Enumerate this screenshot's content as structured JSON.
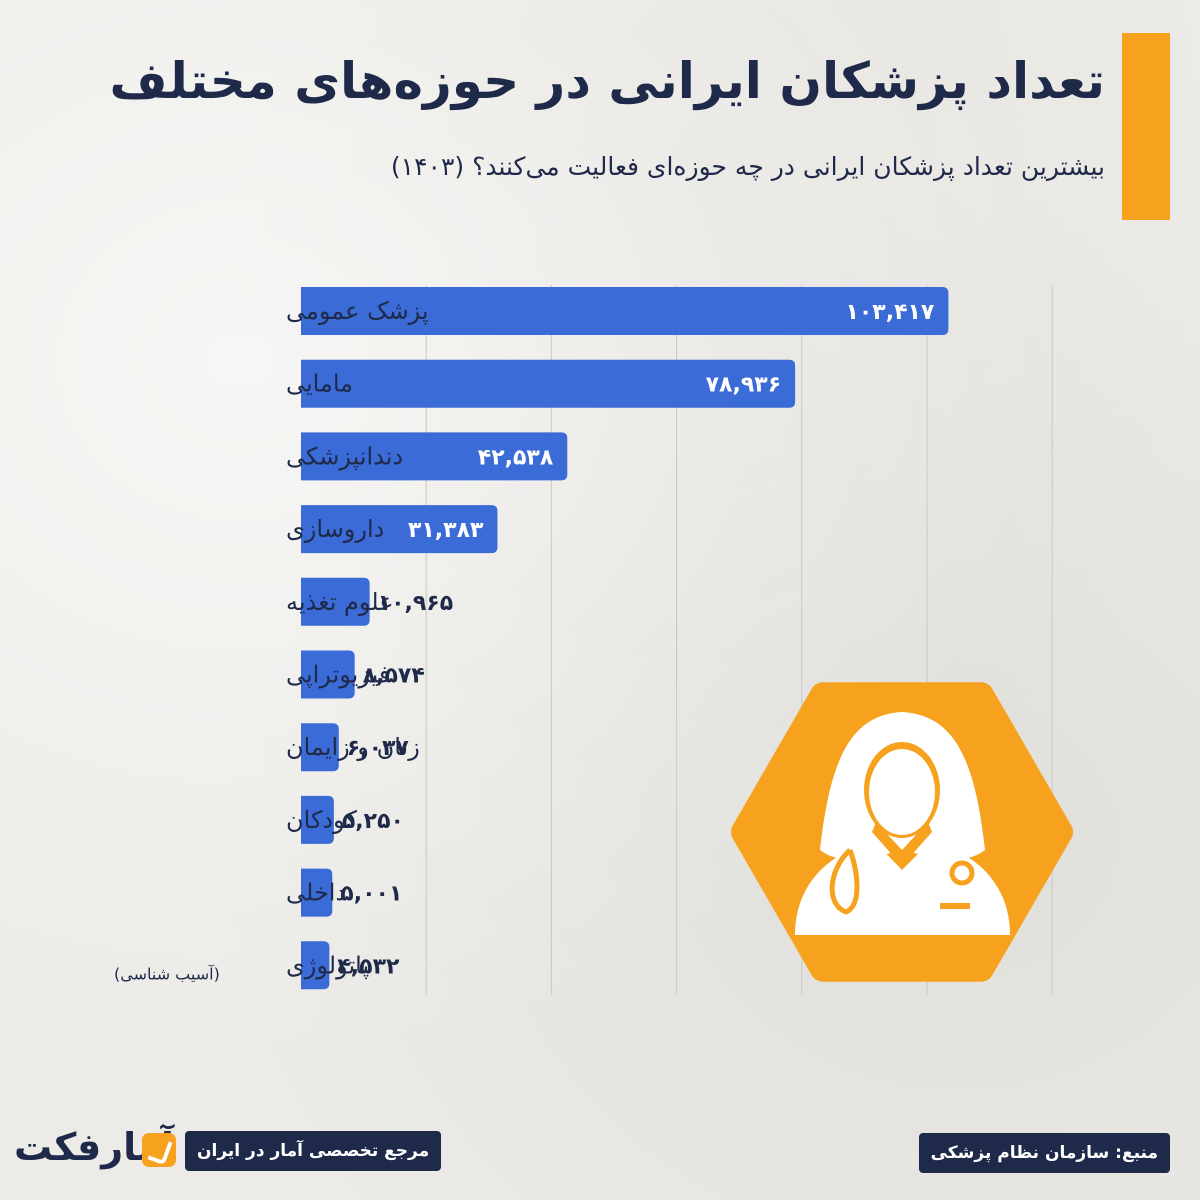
{
  "header": {
    "title": "تعداد پزشکان ایرانی در حوزه‌های مختلف",
    "subtitle": "بیشترین تعداد پزشکان ایرانی در چه حوزه‌ای فعالیت می‌کنند؟ (۱۴۰۳)"
  },
  "chart_data": {
    "type": "bar",
    "orientation": "horizontal",
    "categories": [
      "پزشک عمومی",
      "مامایی",
      "دندانپزشکی",
      "داروسازی",
      "علوم تغذیه",
      "فیزیوتراپی",
      "زنان و زایمان",
      "کودکان",
      "داخلی",
      "پاتولوژی"
    ],
    "category_notes": [
      "",
      "",
      "",
      "",
      "",
      "",
      "",
      "",
      "",
      "(آسیب شناسی)"
    ],
    "values": [
      103417,
      78936,
      42538,
      31383,
      10965,
      8574,
      6037,
      5250,
      5001,
      4532
    ],
    "value_labels": [
      "۱۰۳,۴۱۷",
      "۷۸,۹۳۶",
      "۴۲,۵۳۸",
      "۳۱,۳۸۳",
      "۱۰,۹۶۵",
      "۸,۵۷۴",
      "۶,۰۳۷",
      "۵,۲۵۰",
      "۵,۰۰۱",
      "۴,۵۳۲"
    ],
    "xlim": [
      0,
      120000
    ],
    "grid": true,
    "bar_color": "#3b6bd6",
    "title": "",
    "xlabel": "",
    "ylabel": ""
  },
  "illustration": {
    "icon": "female-doctor-icon",
    "color": "#f6a21e"
  },
  "footer": {
    "brand_name": "آمارفکت",
    "brand_tagline": "مرجع تخصصی آمار در ایران",
    "source": "منبع: سازمان نظام پزشکی"
  },
  "colors": {
    "accent": "#f6a21e",
    "navy": "#1f2a4a",
    "bar": "#3b6bd6"
  }
}
